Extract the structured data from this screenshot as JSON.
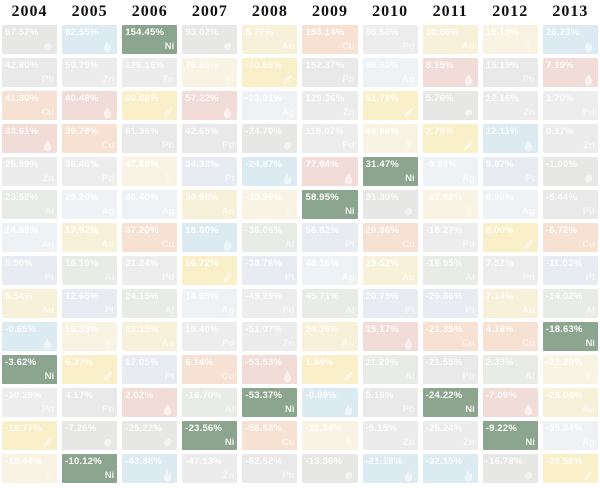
{
  "colors": {
    "highlight_green": "#8ba58e",
    "page_bg": "#ffffff",
    "year_text": "#111111",
    "value_text": "#ffffff"
  },
  "commodities": {
    "nickel": {
      "symbol": "Ni",
      "highlight": true,
      "bg": "#8ba58e"
    },
    "lead": {
      "symbol": "Pb",
      "highlight": false,
      "bg": "#e9e9e9"
    },
    "zinc": {
      "symbol": "Zn",
      "highlight": false,
      "bg": "#ececec"
    },
    "copper": {
      "symbol": "Cu",
      "highlight": false,
      "bg": "#f6e1d3"
    },
    "aluminum": {
      "symbol": "Al",
      "highlight": false,
      "bg": "#e9ebe7"
    },
    "silver": {
      "symbol": "Ag",
      "highlight": false,
      "bg": "#eff2f5"
    },
    "platinum": {
      "symbol": "Pt",
      "highlight": false,
      "bg": "#e8ecf2"
    },
    "gold": {
      "symbol": "Au",
      "highlight": false,
      "bg": "#f8f1d9"
    },
    "palladium": {
      "symbol": "Pd",
      "highlight": false,
      "bg": "#ededed"
    },
    "oil": {
      "symbol": null,
      "icon": "oil-drop-icon",
      "highlight": false,
      "bg": "#f2dcd8"
    },
    "natural_gas": {
      "symbol": null,
      "icon": "flame-icon",
      "highlight": false,
      "bg": "#dcebf2"
    },
    "corn": {
      "symbol": null,
      "icon": "corn-icon",
      "highlight": false,
      "bg": "#f9efc9"
    },
    "wheat": {
      "symbol": null,
      "icon": "wheat-icon",
      "highlight": false,
      "bg": "#f8f3e2"
    },
    "coal": {
      "symbol": null,
      "icon": "coal-icon",
      "highlight": false,
      "bg": "#e7e7e5"
    }
  },
  "chart_data": {
    "type": "heatmap",
    "title": "Annual commodity returns ranked by year, nickel highlighted",
    "legend_position": "none",
    "grid": "off",
    "highlight_commodity": "nickel",
    "years": [
      "2004",
      "2005",
      "2006",
      "2007",
      "2008",
      "2009",
      "2010",
      "2011",
      "2012",
      "2013"
    ],
    "columns": [
      {
        "year": "2004",
        "cells": [
          [
            "67.57%",
            "coal"
          ],
          [
            "42.80%",
            "lead"
          ],
          [
            "41.30%",
            "copper"
          ],
          [
            "33.61%",
            "oil"
          ],
          [
            "25.99%",
            "zinc"
          ],
          [
            "23.52%",
            "aluminum"
          ],
          [
            "14.89%",
            "silver"
          ],
          [
            "5.90%",
            "platinum"
          ],
          [
            "5.54%",
            "gold"
          ],
          [
            "-0.65%",
            "natural_gas"
          ],
          [
            "-3.62%",
            "nickel"
          ],
          [
            "-10.29%",
            "palladium"
          ],
          [
            "-16.77%",
            "corn"
          ],
          [
            "-18.44%",
            "wheat"
          ]
        ]
      },
      {
        "year": "2005",
        "cells": [
          [
            "82.55%",
            "natural_gas"
          ],
          [
            "50.79%",
            "zinc"
          ],
          [
            "40.48%",
            "oil"
          ],
          [
            "39.79%",
            "copper"
          ],
          [
            "36.46%",
            "palladium"
          ],
          [
            "29.20%",
            "silver"
          ],
          [
            "17.92%",
            "gold"
          ],
          [
            "16.19%",
            "aluminum"
          ],
          [
            "12.65%",
            "platinum"
          ],
          [
            "10.33%",
            "wheat"
          ],
          [
            "6.37%",
            "corn"
          ],
          [
            "4.17%",
            "lead"
          ],
          [
            "-7.26%",
            "coal"
          ],
          [
            "-10.12%",
            "nickel"
          ]
        ]
      },
      {
        "year": "2006",
        "cells": [
          [
            "154.45%",
            "nickel"
          ],
          [
            "126.16%",
            "zinc"
          ],
          [
            "80.88%",
            "corn"
          ],
          [
            "61.36%",
            "lead"
          ],
          [
            "47.68%",
            "wheat"
          ],
          [
            "46.40%",
            "silver"
          ],
          [
            "37.20%",
            "copper"
          ],
          [
            "31.24%",
            "palladium"
          ],
          [
            "24.15%",
            "aluminum"
          ],
          [
            "23.15%",
            "gold"
          ],
          [
            "17.05%",
            "platinum"
          ],
          [
            "2.02%",
            "oil"
          ],
          [
            "-25.22%",
            "coal"
          ],
          [
            "-43.88%",
            "natural_gas"
          ]
        ]
      },
      {
        "year": "2007",
        "cells": [
          [
            "93.02%",
            "coal"
          ],
          [
            "76.65%",
            "wheat"
          ],
          [
            "57.22%",
            "oil"
          ],
          [
            "42.65%",
            "lead"
          ],
          [
            "34.33%",
            "platinum"
          ],
          [
            "30.98%",
            "gold"
          ],
          [
            "18.80%",
            "natural_gas"
          ],
          [
            "16.72%",
            "corn"
          ],
          [
            "14.65%",
            "silver"
          ],
          [
            "10.40%",
            "palladium"
          ],
          [
            "6.14%",
            "copper"
          ],
          [
            "-16.70%",
            "aluminum"
          ],
          [
            "-23.56%",
            "nickel"
          ],
          [
            "-47.13%",
            "zinc"
          ]
        ]
      },
      {
        "year": "2008",
        "cells": [
          [
            "5.77%",
            "gold"
          ],
          [
            "-10.65%",
            "corn"
          ],
          [
            "-23.01%",
            "silver"
          ],
          [
            "-24.70%",
            "coal"
          ],
          [
            "-24.87%",
            "natural_gas"
          ],
          [
            "-30.99%",
            "wheat"
          ],
          [
            "-36.06%",
            "aluminum"
          ],
          [
            "-38.76%",
            "platinum"
          ],
          [
            "-49.29%",
            "palladium"
          ],
          [
            "-51.07%",
            "zinc"
          ],
          [
            "-53.53%",
            "oil"
          ],
          [
            "-53.37%",
            "nickel"
          ],
          [
            "-56.53%",
            "copper"
          ],
          [
            "-62.52%",
            "lead"
          ]
        ]
      },
      {
        "year": "2009",
        "cells": [
          [
            "153.14%",
            "copper"
          ],
          [
            "152.37%",
            "lead"
          ],
          [
            "129.36%",
            "zinc"
          ],
          [
            "118.07%",
            "palladium"
          ],
          [
            "77.94%",
            "oil"
          ],
          [
            "58.95%",
            "nickel"
          ],
          [
            "56.82%",
            "platinum"
          ],
          [
            "48.16%",
            "silver"
          ],
          [
            "45.71%",
            "aluminum"
          ],
          [
            "24.36%",
            "gold"
          ],
          [
            "1.84%",
            "corn"
          ],
          [
            "-0.89%",
            "natural_gas"
          ],
          [
            "-11.34%",
            "wheat"
          ],
          [
            "-13.36%",
            "coal"
          ]
        ]
      },
      {
        "year": "2010",
        "cells": [
          [
            "96.60%",
            "palladium"
          ],
          [
            "96.60%",
            "silver"
          ],
          [
            "51.78%",
            "corn"
          ],
          [
            "46.68%",
            "wheat"
          ],
          [
            "31.47%",
            "nickel"
          ],
          [
            "31.39%",
            "coal"
          ],
          [
            "29.96%",
            "copper"
          ],
          [
            "29.52%",
            "gold"
          ],
          [
            "20.79%",
            "platinum"
          ],
          [
            "15.17%",
            "oil"
          ],
          [
            "11.29%",
            "aluminum"
          ],
          [
            "5.16%",
            "lead"
          ],
          [
            "-5.15%",
            "zinc"
          ],
          [
            "-21.18%",
            "natural_gas"
          ]
        ]
      },
      {
        "year": "2011",
        "cells": [
          [
            "10.06%",
            "gold"
          ],
          [
            "8.15%",
            "oil"
          ],
          [
            "5.76%",
            "coal"
          ],
          [
            "2.78%",
            "corn"
          ],
          [
            "-9.94%",
            "silver"
          ],
          [
            "-17.82%",
            "wheat"
          ],
          [
            "-18.27%",
            "palladium"
          ],
          [
            "-18.95%",
            "aluminum"
          ],
          [
            "-20.86%",
            "platinum"
          ],
          [
            "-21.35%",
            "copper"
          ],
          [
            "-21.55%",
            "lead"
          ],
          [
            "-24.22%",
            "nickel"
          ],
          [
            "-25.24%",
            "zinc"
          ],
          [
            "-32.15%",
            "natural_gas"
          ]
        ]
      },
      {
        "year": "2012",
        "cells": [
          [
            "19.19%",
            "wheat"
          ],
          [
            "15.19%",
            "lead"
          ],
          [
            "12.16%",
            "zinc"
          ],
          [
            "12.11%",
            "natural_gas"
          ],
          [
            "9.87%",
            "platinum"
          ],
          [
            "8.98%",
            "silver"
          ],
          [
            "8.00%",
            "corn"
          ],
          [
            "7.52%",
            "palladium"
          ],
          [
            "7.14%",
            "gold"
          ],
          [
            "4.18%",
            "copper"
          ],
          [
            "2.33%",
            "aluminum"
          ],
          [
            "-7.09%",
            "oil"
          ],
          [
            "-9.22%",
            "nickel"
          ],
          [
            "-16.78%",
            "coal"
          ]
        ]
      },
      {
        "year": "2013",
        "cells": [
          [
            "26.23%",
            "natural_gas"
          ],
          [
            "7.19%",
            "oil"
          ],
          [
            "1.70%",
            "palladium"
          ],
          [
            "0.17%",
            "zinc"
          ],
          [
            "-1.00%",
            "coal"
          ],
          [
            "-5.44%",
            "lead"
          ],
          [
            "-6.72%",
            "copper"
          ],
          [
            "-11.03%",
            "platinum"
          ],
          [
            "-14.02%",
            "aluminum"
          ],
          [
            "-18.63%",
            "nickel"
          ],
          [
            "-22.20%",
            "wheat"
          ],
          [
            "-28.04%",
            "gold"
          ],
          [
            "-35.84%",
            "silver"
          ],
          [
            "-39.56%",
            "corn"
          ]
        ]
      }
    ]
  }
}
